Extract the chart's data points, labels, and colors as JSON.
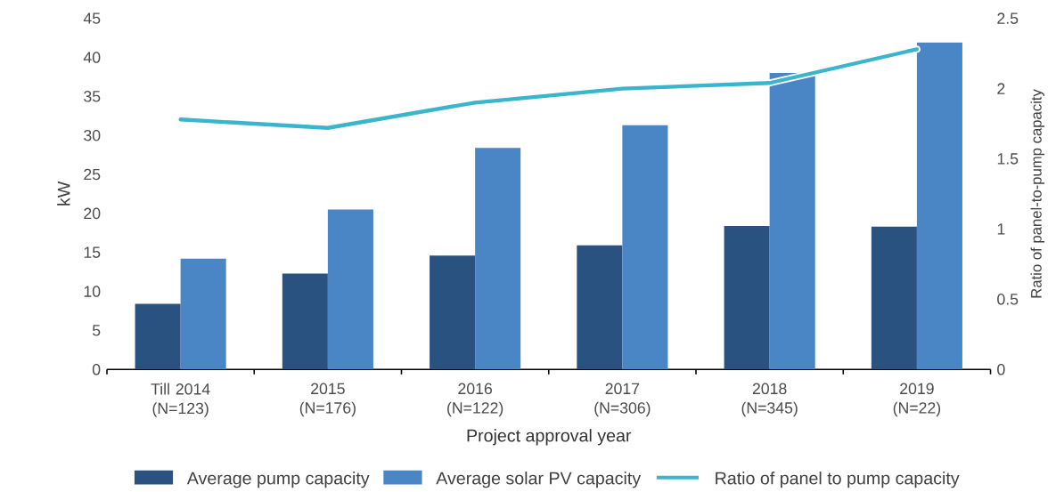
{
  "chart_data": {
    "type": "bar",
    "xlabel": "Project approval year",
    "ylabel": "kW",
    "y2label": "Ratio of panel-to-pump capacity",
    "categories": [
      "Till 2014 (N=123)",
      "2015 (N=176)",
      "2016 (N=122)",
      "2017 (N=306)",
      "2018 (N=345)",
      "2019 (N=22)"
    ],
    "series": [
      {
        "name": "Average pump capacity",
        "color": "#2a5280",
        "values": [
          8.4,
          12.3,
          14.6,
          15.9,
          18.4,
          18.3
        ]
      },
      {
        "name": "Average solar PV capacity",
        "color": "#4a86c5",
        "values": [
          14.2,
          20.5,
          28.4,
          31.3,
          38.0,
          41.9
        ]
      },
      {
        "name": "Ratio of panel to pump capacity",
        "type": "line",
        "axis": "y2",
        "color": "#3ab5cc",
        "values": [
          1.78,
          1.72,
          1.9,
          2.0,
          2.04,
          2.28
        ]
      }
    ],
    "ylim": [
      0,
      45
    ],
    "yticks": [
      0,
      5,
      10,
      15,
      20,
      25,
      30,
      35,
      40,
      45
    ],
    "y2lim": [
      0,
      2.5
    ],
    "y2ticks": [
      0,
      0.5,
      1,
      1.5,
      2,
      2.5
    ],
    "legend": "bottom",
    "grid": false
  }
}
